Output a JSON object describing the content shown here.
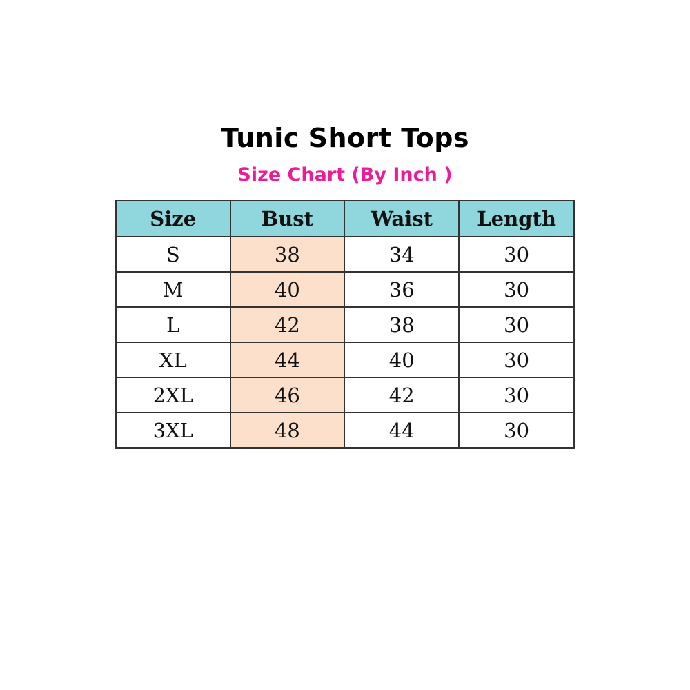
{
  "title": "Tunic Short Tops",
  "subtitle": "Size Chart (By Inch )",
  "colors": {
    "header_bg": "#8fd6dd",
    "bust_bg": "#fde0cc",
    "subtitle": "#ec1c99"
  },
  "chart_data": {
    "type": "table",
    "columns": [
      "Size",
      "Bust",
      "Waist",
      "Length"
    ],
    "rows": [
      [
        "S",
        "38",
        "34",
        "30"
      ],
      [
        "M",
        "40",
        "36",
        "30"
      ],
      [
        "L",
        "42",
        "38",
        "30"
      ],
      [
        "XL",
        "44",
        "40",
        "30"
      ],
      [
        "2XL",
        "46",
        "42",
        "30"
      ],
      [
        "3XL",
        "48",
        "44",
        "30"
      ]
    ]
  }
}
